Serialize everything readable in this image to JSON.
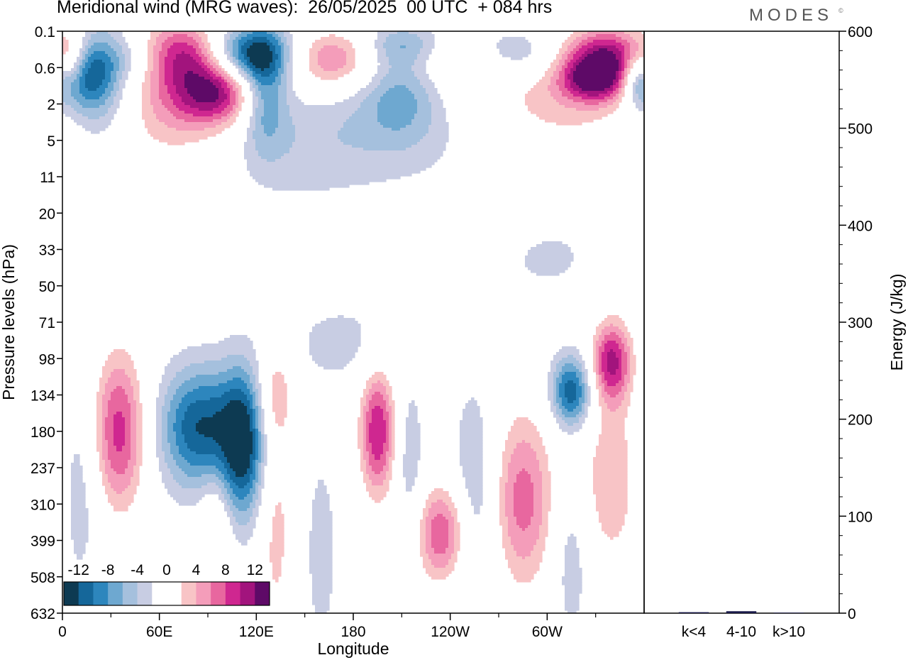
{
  "title": "Meridional wind (MRG waves):  26/05/2025  00 UTC  + 084 hrs",
  "brand": "MODES",
  "brand_mark": "©",
  "chart_data": [
    {
      "type": "heatmap",
      "title": "Meridional wind (MRG waves):  26/05/2025  00 UTC  + 084 hrs",
      "xlabel": "Longitude",
      "ylabel": "Pressure levels (hPa)",
      "x_ticks": [
        "0",
        "60E",
        "120E",
        "180",
        "120W",
        "60W"
      ],
      "x_tick_values": [
        0,
        60,
        120,
        180,
        240,
        300
      ],
      "xlim": [
        0,
        360
      ],
      "y_ticks": [
        "0.1",
        "0.6",
        "2",
        "5",
        "11",
        "20",
        "33",
        "50",
        "71",
        "98",
        "134",
        "180",
        "237",
        "310",
        "399",
        "508",
        "632"
      ],
      "y_scale": "model levels (pressure)",
      "grid": false,
      "colorbar": {
        "placement": "bottom-left",
        "labels": [
          "-12",
          "-8",
          "-4",
          "0",
          "4",
          "8",
          "12"
        ],
        "levels": [
          -14,
          -12,
          -10,
          -8,
          -6,
          -4,
          -2,
          2,
          4,
          6,
          8,
          10,
          12,
          14
        ],
        "colors": [
          "#0d3a52",
          "#15679a",
          "#2d86bd",
          "#6ea8d0",
          "#a5c0dd",
          "#c8cde3",
          "#ffffff",
          "#ffffff",
          "#f8c4c6",
          "#f49dba",
          "#e8679f",
          "#cf2790",
          "#a2147d",
          "#5e0a67"
        ]
      },
      "features": [
        {
          "lon": 5,
          "p": 0.45,
          "v": 8,
          "lon_w": 8,
          "lev_w": 0.6
        },
        {
          "lon": 8,
          "p": 0.7,
          "v": -13,
          "lon_w": 14,
          "lev_w": 0.7
        },
        {
          "lon": 25,
          "p": 1.0,
          "v": -7,
          "lon_w": 14,
          "lev_w": 1.2
        },
        {
          "lon": 50,
          "p": 0.35,
          "v": -6,
          "lon_w": 18,
          "lev_w": 0.5
        },
        {
          "lon": 75,
          "p": 0.3,
          "v": 14,
          "lon_w": 22,
          "lev_w": 0.6
        },
        {
          "lon": 112,
          "p": 0.3,
          "v": -14,
          "lon_w": 22,
          "lev_w": 0.55
        },
        {
          "lon": 95,
          "p": 1.4,
          "v": 11,
          "lon_w": 18,
          "lev_w": 0.6
        },
        {
          "lon": 70,
          "p": 2.2,
          "v": 6,
          "lon_w": 30,
          "lev_w": 1.2
        },
        {
          "lon": 125,
          "p": 1.3,
          "v": -8,
          "lon_w": 10,
          "lev_w": 1.1
        },
        {
          "lon": 165,
          "p": 0.4,
          "v": 9,
          "lon_w": 20,
          "lev_w": 0.6
        },
        {
          "lon": 210,
          "p": 0.2,
          "v": -5,
          "lon_w": 16,
          "lev_w": 0.4
        },
        {
          "lon": 210,
          "p": 1.3,
          "v": -6,
          "lon_w": 18,
          "lev_w": 0.9
        },
        {
          "lon": 245,
          "p": 0.45,
          "v": 4,
          "lon_w": 30,
          "lev_w": 0.5
        },
        {
          "lon": 280,
          "p": 0.3,
          "v": -5,
          "lon_w": 20,
          "lev_w": 0.45
        },
        {
          "lon": 340,
          "p": 0.3,
          "v": 13,
          "lon_w": 22,
          "lev_w": 0.55
        },
        {
          "lon": 330,
          "p": 0.9,
          "v": 12,
          "lon_w": 16,
          "lev_w": 0.45
        },
        {
          "lon": 355,
          "p": 0.9,
          "v": -6,
          "lon_w": 6,
          "lev_w": 0.5
        },
        {
          "lon": 290,
          "p": 1.6,
          "v": 4,
          "lon_w": 55,
          "lev_w": 0.6
        },
        {
          "lon": 300,
          "p": 4.5,
          "v": 3,
          "lon_w": 40,
          "lev_w": 0.6
        },
        {
          "lon": 220,
          "p": 3.0,
          "v": -3,
          "lon_w": 45,
          "lev_w": 1.2
        },
        {
          "lon": 145,
          "p": 5.5,
          "v": -3,
          "lon_w": 40,
          "lev_w": 1.2
        },
        {
          "lon": 345,
          "p": 11,
          "v": 3,
          "lon_w": 18,
          "lev_w": 0.6
        },
        {
          "lon": 270,
          "p": 20,
          "v": 3,
          "lon_w": 18,
          "lev_w": 0.6
        },
        {
          "lon": 45,
          "p": 29,
          "v": 3,
          "lon_w": 14,
          "lev_w": 0.5
        },
        {
          "lon": 300,
          "p": 36,
          "v": -3,
          "lon_w": 18,
          "lev_w": 0.6
        },
        {
          "lon": 50,
          "p": 48,
          "v": 3,
          "lon_w": 25,
          "lev_w": 0.7
        },
        {
          "lon": 350,
          "p": 45,
          "v": 3,
          "lon_w": 12,
          "lev_w": 0.5
        },
        {
          "lon": 175,
          "p": 85,
          "v": -3,
          "lon_w": 26,
          "lev_w": 0.8
        },
        {
          "lon": 35,
          "p": 180,
          "v": 11,
          "lon_w": 12,
          "lev_w": 1.6
        },
        {
          "lon": 10,
          "p": 270,
          "v": -4,
          "lon_w": 10,
          "lev_w": 2.0
        },
        {
          "lon": 85,
          "p": 175,
          "v": -12,
          "lon_w": 18,
          "lev_w": 1.2
        },
        {
          "lon": 112,
          "p": 200,
          "v": -12,
          "lon_w": 10,
          "lev_w": 1.5
        },
        {
          "lon": 132,
          "p": 130,
          "v": 5,
          "lon_w": 8,
          "lev_w": 0.9
        },
        {
          "lon": 132,
          "p": 360,
          "v": 5,
          "lon_w": 8,
          "lev_w": 2.4
        },
        {
          "lon": 160,
          "p": 430,
          "v": -3,
          "lon_w": 8,
          "lev_w": 2.2
        },
        {
          "lon": 195,
          "p": 180,
          "v": 12,
          "lon_w": 8,
          "lev_w": 1.3
        },
        {
          "lon": 215,
          "p": 230,
          "v": -4,
          "lon_w": 6,
          "lev_w": 1.6
        },
        {
          "lon": 235,
          "p": 380,
          "v": 10,
          "lon_w": 12,
          "lev_w": 1.0
        },
        {
          "lon": 255,
          "p": 300,
          "v": -5,
          "lon_w": 10,
          "lev_w": 2.2
        },
        {
          "lon": 285,
          "p": 300,
          "v": 9,
          "lon_w": 14,
          "lev_w": 1.8
        },
        {
          "lon": 315,
          "p": 130,
          "v": -12,
          "lon_w": 9,
          "lev_w": 0.7
        },
        {
          "lon": 315,
          "p": 450,
          "v": -4,
          "lon_w": 8,
          "lev_w": 1.6
        },
        {
          "lon": 340,
          "p": 100,
          "v": 12,
          "lon_w": 9,
          "lev_w": 0.8
        },
        {
          "lon": 340,
          "p": 260,
          "v": 6,
          "lon_w": 14,
          "lev_w": 1.8
        },
        {
          "lon": 95,
          "p": 360,
          "v": 4,
          "lon_w": 7,
          "lev_w": 1.2
        }
      ]
    },
    {
      "type": "bar",
      "categories": [
        "k<4",
        "4-10",
        "k>10"
      ],
      "values": [
        1,
        2,
        0.5
      ],
      "ylabel": "Energy (J/kg)",
      "ylim": [
        0,
        600
      ],
      "y_ticks": [
        0,
        100,
        200,
        300,
        400,
        500,
        600
      ],
      "bar_color": "#1a1a4a"
    }
  ]
}
